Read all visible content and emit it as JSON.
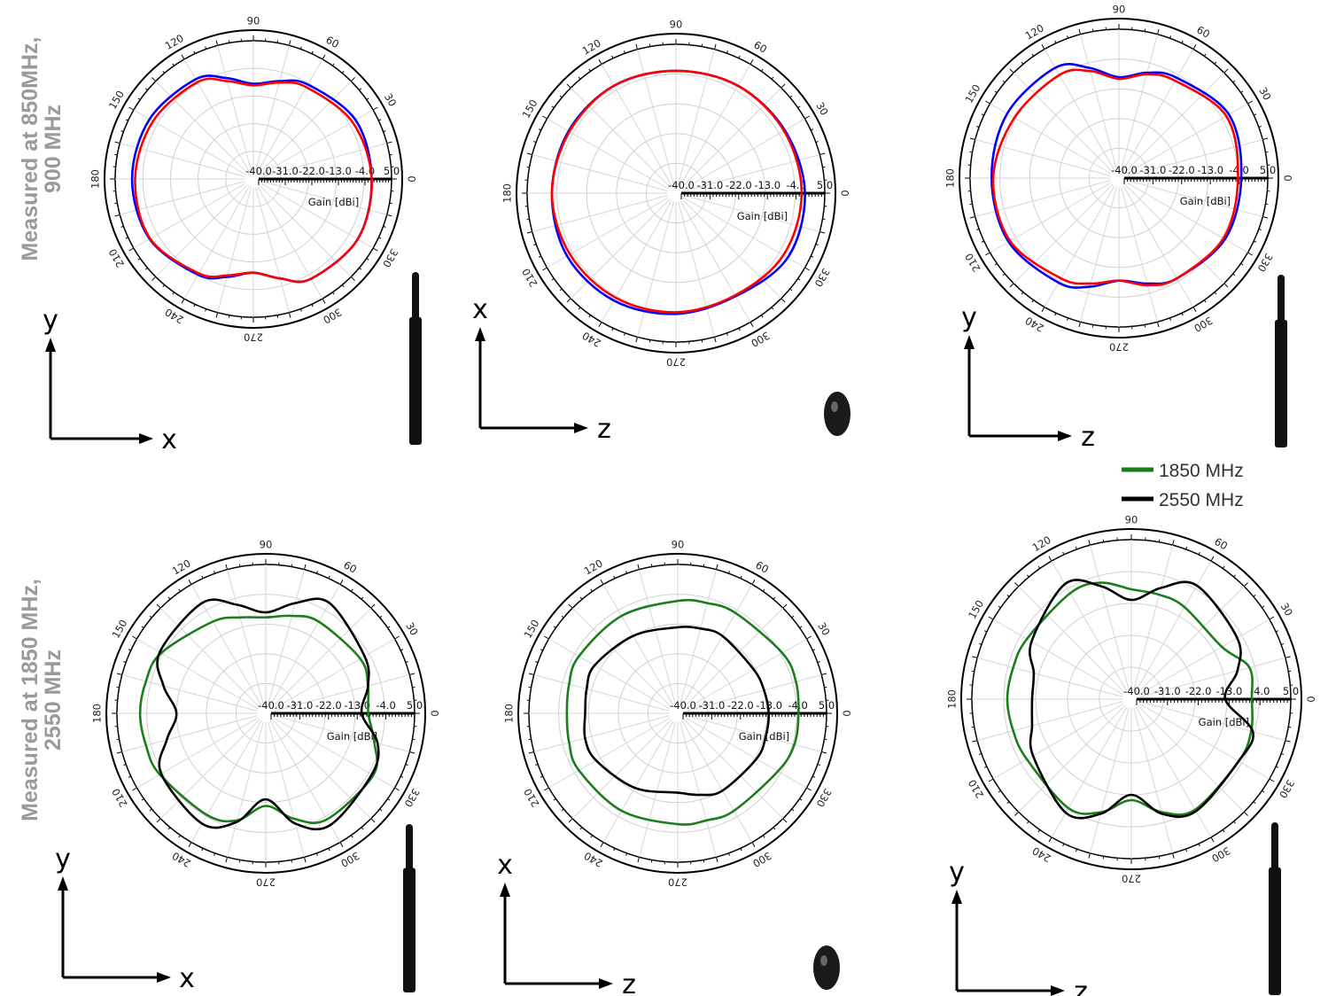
{
  "row_labels": [
    {
      "line1": "Measured at 850MHz,",
      "line2": "900 MHz"
    },
    {
      "line1": "Measured at 1850 MHz,",
      "line2": "2550 MHz"
    }
  ],
  "legend_bottom": [
    {
      "label": "1850 MHz",
      "color": "#1b7d1b"
    },
    {
      "label": "2550 MHz",
      "color": "#000000"
    }
  ],
  "chart_data": [
    {
      "type": "polar-line",
      "panel": "top-xy",
      "rlim": [
        -40,
        5
      ],
      "rticks": [
        "-40.0",
        "-31.0",
        "-22.0",
        "-13.0",
        "-4.0",
        "5.0"
      ],
      "angle_ticks": [
        "0",
        "30",
        "60",
        "90",
        "120",
        "150",
        "180",
        "210",
        "240",
        "270",
        "300",
        "330"
      ],
      "rlabel": "Gain [dBi]",
      "axes": {
        "vertical": "y",
        "horizontal": "x"
      },
      "theta": [
        0,
        30,
        60,
        75,
        90,
        105,
        120,
        150,
        180,
        210,
        240,
        255,
        270,
        285,
        300,
        330
      ],
      "series": [
        {
          "color": "#0000ff",
          "values": [
            -1.5,
            -1.6,
            -4.5,
            -7.0,
            -9.0,
            -6.0,
            -2.5,
            -1.0,
            -0.5,
            -1.0,
            -4.0,
            -7.0,
            -9.5,
            -6.5,
            -2.5,
            -0.8
          ]
        },
        {
          "color": "#ff0000",
          "values": [
            -1.5,
            -2.8,
            -5.5,
            -7.5,
            -9.5,
            -7.0,
            -3.6,
            -2.3,
            -1.5,
            -1.2,
            -4.5,
            -7.5,
            -9.5,
            -6.5,
            -2.5,
            -0.8
          ]
        }
      ]
    },
    {
      "type": "polar-line",
      "panel": "top-xz",
      "rlim": [
        -40,
        5
      ],
      "rticks": [
        "-40.0",
        "-31.0",
        "-22.0",
        "-13.0",
        "-4.0",
        "5.0"
      ],
      "angle_ticks": [
        "0",
        "30",
        "60",
        "90",
        "120",
        "150",
        "180",
        "210",
        "240",
        "270",
        "300",
        "330"
      ],
      "rlabel": "Gain [dBi]",
      "axes": {
        "vertical": "x",
        "horizontal": "z"
      },
      "theta": [
        0,
        30,
        60,
        90,
        120,
        150,
        180,
        210,
        240,
        270,
        300,
        330
      ],
      "series": [
        {
          "color": "#0000ff",
          "values": [
            -1.0,
            -2.0,
            -2.5,
            -3.0,
            -2.5,
            -2.5,
            -2.5,
            -2.0,
            -2.5,
            -3.5,
            -4.0,
            -1.0
          ]
        },
        {
          "color": "#ff0000",
          "values": [
            -2.0,
            -2.3,
            -2.5,
            -3.0,
            -2.5,
            -2.8,
            -2.5,
            -3.0,
            -3.5,
            -4.0,
            -4.3,
            -2.5
          ]
        }
      ]
    },
    {
      "type": "polar-line",
      "panel": "top-yz",
      "rlim": [
        -40,
        5
      ],
      "rticks": [
        "-40.0",
        "-31.0",
        "-22.0",
        "-13.0",
        "-4.0",
        "5.0"
      ],
      "angle_ticks": [
        "0",
        "30",
        "60",
        "90",
        "120",
        "150",
        "180",
        "210",
        "240",
        "270",
        "300",
        "330"
      ],
      "rlabel": "Gain [dBi]",
      "axes": {
        "vertical": "y",
        "horizontal": "z"
      },
      "theta": [
        0,
        30,
        60,
        75,
        90,
        105,
        120,
        150,
        180,
        210,
        240,
        255,
        270,
        285,
        300,
        330
      ],
      "series": [
        {
          "color": "#0000ff",
          "values": [
            -3.0,
            -1.6,
            -5.0,
            -7.0,
            -9.5,
            -5.5,
            -1.5,
            -1.0,
            -1.5,
            -1.5,
            -3.5,
            -6.0,
            -9.0,
            -7.0,
            -5.0,
            -3.0
          ]
        },
        {
          "color": "#ff0000",
          "values": [
            -4.0,
            -2.5,
            -6.0,
            -7.5,
            -10.0,
            -6.5,
            -4.0,
            -3.5,
            -2.0,
            -2.0,
            -5.0,
            -7.0,
            -9.0,
            -6.5,
            -5.0,
            -3.5
          ]
        }
      ]
    },
    {
      "type": "polar-line",
      "panel": "bottom-xy",
      "rlim": [
        -40,
        5
      ],
      "rticks": [
        "-40.0",
        "-31.0",
        "-22.0",
        "-13.0",
        "-4.0",
        "5.0"
      ],
      "angle_ticks": [
        "0",
        "30",
        "60",
        "90",
        "120",
        "150",
        "180",
        "210",
        "240",
        "270",
        "300",
        "330"
      ],
      "rlabel": "Gain [dBi]",
      "axes": {
        "vertical": "y",
        "horizontal": "x"
      },
      "theta": [
        0,
        15,
        30,
        60,
        75,
        90,
        105,
        120,
        150,
        165,
        180,
        195,
        210,
        240,
        255,
        270,
        285,
        300,
        330,
        345
      ],
      "series": [
        {
          "name": "1850 MHz",
          "color": "#1b7d1b",
          "values": [
            -9.0,
            -8.0,
            -7.0,
            -8.0,
            -9.5,
            -11.0,
            -10.0,
            -8.0,
            -3.5,
            -2.5,
            -2.0,
            -2.5,
            -3.0,
            -4.5,
            -6.5,
            -12.0,
            -7.0,
            -3.0,
            -2.5,
            -6.0
          ]
        },
        {
          "name": "2550 MHz",
          "color": "#000000",
          "values": [
            -11.0,
            -8.0,
            -5.5,
            -1.5,
            -5.5,
            -9.5,
            -6.0,
            -1.5,
            -3.0,
            -8.0,
            -13.0,
            -9.0,
            -3.5,
            -1.5,
            -6.0,
            -14.0,
            -5.5,
            -1.0,
            -3.0,
            -5.0
          ]
        }
      ]
    },
    {
      "type": "polar-line",
      "panel": "bottom-xz",
      "rlim": [
        -40,
        5
      ],
      "rticks": [
        "-40.0",
        "-31.0",
        "-22.0",
        "-13.0",
        "-4.0",
        "5.0"
      ],
      "angle_ticks": [
        "0",
        "30",
        "60",
        "90",
        "120",
        "150",
        "180",
        "210",
        "240",
        "270",
        "300",
        "330"
      ],
      "rlabel": "Gain [dBi]",
      "axes": {
        "vertical": "x",
        "horizontal": "z"
      },
      "theta": [
        0,
        15,
        30,
        60,
        75,
        90,
        120,
        150,
        165,
        180,
        195,
        210,
        240,
        270,
        285,
        300,
        330,
        345
      ],
      "series": [
        {
          "name": "1850 MHz",
          "color": "#1b7d1b",
          "values": [
            -3.5,
            -3.0,
            -3.5,
            -5.0,
            -5.5,
            -6.0,
            -6.0,
            -5.5,
            -6.0,
            -6.5,
            -6.0,
            -5.5,
            -6.0,
            -6.5,
            -6.5,
            -6.0,
            -5.0,
            -3.5
          ]
        },
        {
          "name": "2550 MHz",
          "color": "#000000",
          "values": [
            -12.5,
            -13.0,
            -13.5,
            -13.0,
            -13.5,
            -14.0,
            -13.0,
            -11.0,
            -11.5,
            -12.0,
            -11.0,
            -11.5,
            -14.0,
            -16.0,
            -14.5,
            -13.0,
            -12.5,
            -12.5
          ]
        }
      ]
    },
    {
      "type": "polar-line",
      "panel": "bottom-yz",
      "rlim": [
        -40,
        5
      ],
      "rticks": [
        "-40.0",
        "-31.0",
        "-22.0",
        "-13.0",
        "-4.0",
        "5.0"
      ],
      "angle_ticks": [
        "0",
        "30",
        "60",
        "90",
        "120",
        "150",
        "180",
        "210",
        "240",
        "270",
        "300",
        "330"
      ],
      "rlabel": "Gain [dBi]",
      "axes": {
        "vertical": "y",
        "horizontal": "z"
      },
      "theta": [
        0,
        15,
        30,
        60,
        75,
        90,
        105,
        120,
        150,
        165,
        180,
        195,
        210,
        240,
        255,
        270,
        285,
        300,
        330,
        345
      ],
      "series": [
        {
          "name": "1850 MHz",
          "color": "#1b7d1b",
          "values": [
            -6.0,
            -5.5,
            -10.5,
            -10.0,
            -9.5,
            -9.0,
            -6.0,
            -5.5,
            -6.0,
            -5.5,
            -5.0,
            -5.5,
            -6.0,
            -4.5,
            -7.0,
            -11.5,
            -7.0,
            -4.0,
            -5.0,
            -5.0
          ]
        },
        {
          "name": "2550 MHz",
          "color": "#000000",
          "values": [
            -13.5,
            -9.0,
            -5.5,
            -3.0,
            -7.5,
            -12.0,
            -7.0,
            -2.5,
            -7.5,
            -11.5,
            -12.0,
            -11.0,
            -8.0,
            -3.0,
            -6.5,
            -13.0,
            -6.5,
            -3.5,
            -5.0,
            -4.5
          ]
        }
      ]
    }
  ]
}
